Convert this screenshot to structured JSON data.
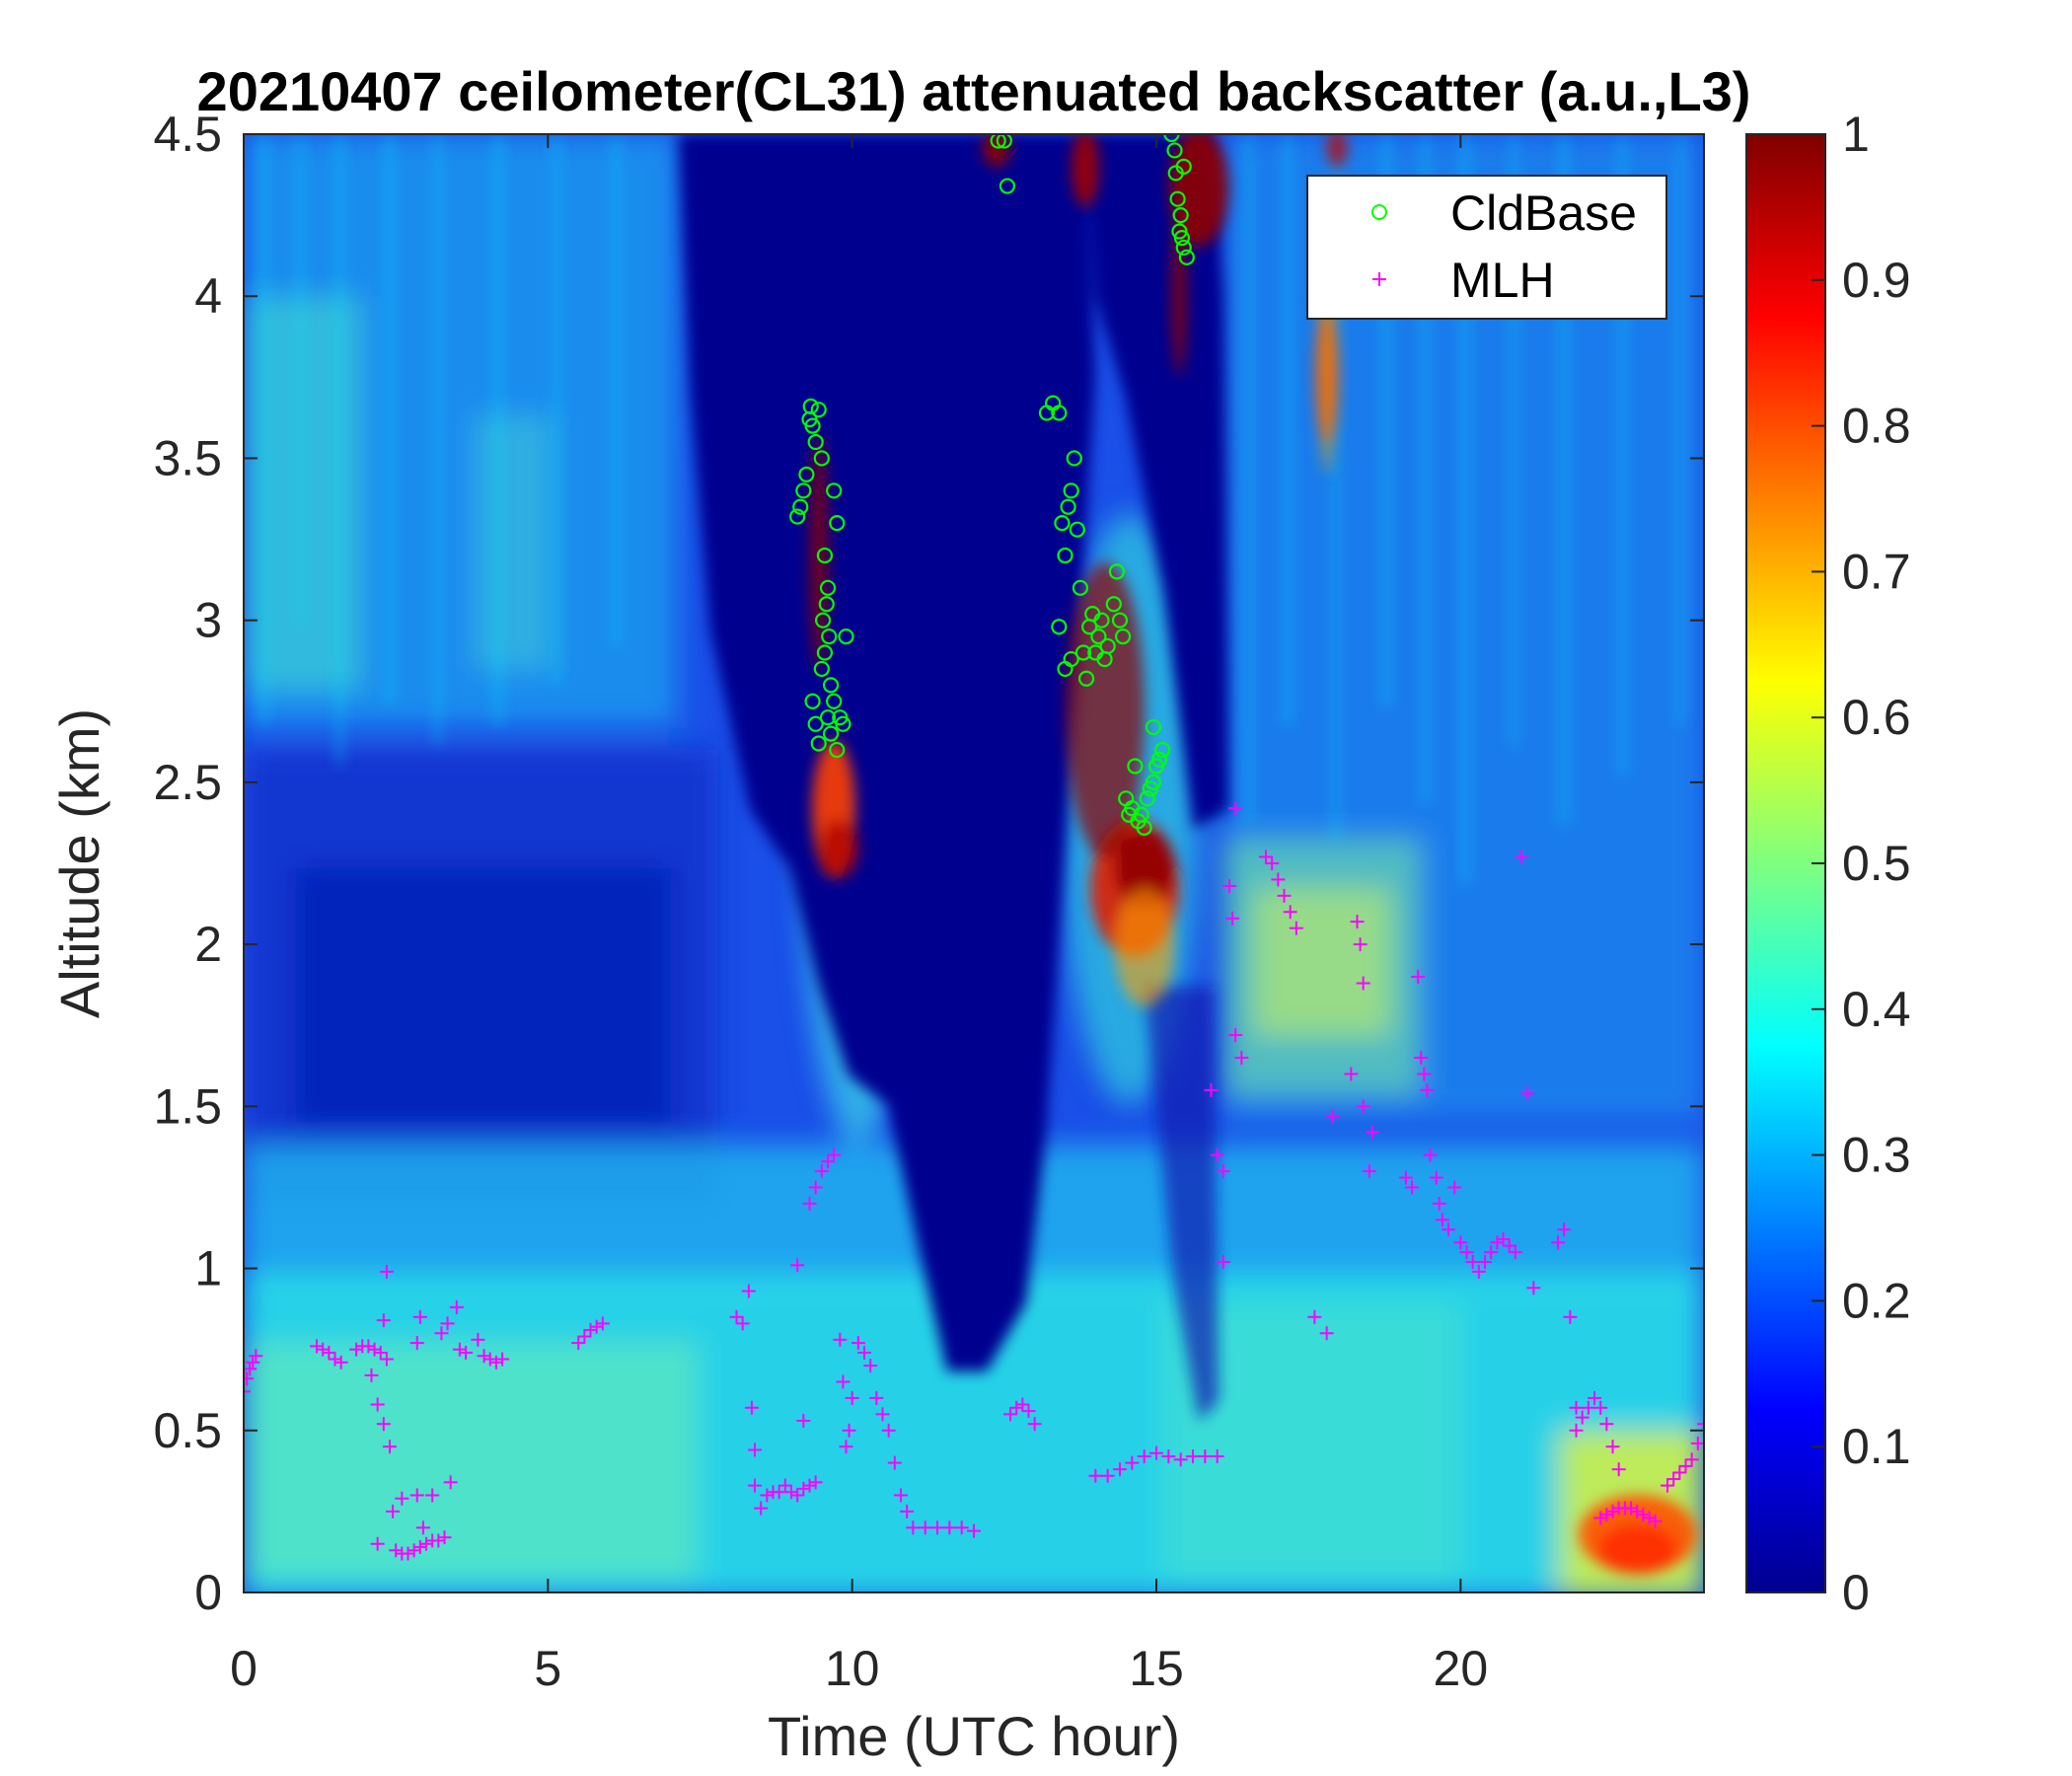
{
  "chart_data": {
    "type": "heatmap",
    "title": "20210407 ceilometer(CL31) attenuated backscatter (a.u.,L3)",
    "xlabel": "Time (UTC hour)",
    "ylabel": "Altitude (km)",
    "xlim": [
      0,
      24
    ],
    "ylim": [
      0,
      4.5
    ],
    "x_ticks": [
      0,
      5,
      10,
      15,
      20
    ],
    "x_tick_labels": [
      "0",
      "5",
      "10",
      "15",
      "20"
    ],
    "y_ticks": [
      0,
      0.5,
      1,
      1.5,
      2,
      2.5,
      3,
      3.5,
      4,
      4.5
    ],
    "y_tick_labels": [
      "0",
      "0.5",
      "1",
      "1.5",
      "2",
      "2.5",
      "3",
      "3.5",
      "4",
      "4.5"
    ],
    "colorbar": {
      "colormap": "jet",
      "range": [
        0,
        1
      ],
      "ticks": [
        0,
        0.1,
        0.2,
        0.3,
        0.4,
        0.5,
        0.6,
        0.7,
        0.8,
        0.9,
        1
      ],
      "tick_labels": [
        "0",
        "0.1",
        "0.2",
        "0.3",
        "0.4",
        "0.5",
        "0.6",
        "0.7",
        "0.8",
        "0.9",
        "1"
      ]
    },
    "legend": {
      "placement": "top-right",
      "entries": [
        {
          "label": "CldBase",
          "marker": "circle",
          "color": "#00ff00"
        },
        {
          "label": "MLH",
          "marker": "plus",
          "color": "#ff00ff"
        }
      ]
    },
    "series": [
      {
        "name": "CldBase",
        "marker": "circle",
        "color": "#00ff00",
        "points": [
          [
            9.1,
            3.32
          ],
          [
            9.15,
            3.35
          ],
          [
            9.2,
            3.4
          ],
          [
            9.25,
            3.45
          ],
          [
            9.3,
            3.62
          ],
          [
            9.32,
            3.66
          ],
          [
            9.35,
            3.6
          ],
          [
            9.4,
            3.55
          ],
          [
            9.45,
            3.65
          ],
          [
            9.5,
            3.5
          ],
          [
            9.55,
            3.2
          ],
          [
            9.6,
            3.1
          ],
          [
            9.62,
            2.95
          ],
          [
            9.65,
            2.8
          ],
          [
            9.7,
            3.4
          ],
          [
            9.75,
            3.3
          ],
          [
            9.8,
            2.7
          ],
          [
            9.35,
            2.75
          ],
          [
            9.4,
            2.68
          ],
          [
            9.45,
            2.62
          ],
          [
            9.5,
            2.85
          ],
          [
            9.55,
            2.9
          ],
          [
            9.6,
            2.7
          ],
          [
            9.65,
            2.65
          ],
          [
            9.7,
            2.75
          ],
          [
            9.75,
            2.6
          ],
          [
            9.85,
            2.68
          ],
          [
            9.9,
            2.95
          ],
          [
            9.52,
            3.0
          ],
          [
            9.58,
            3.05
          ],
          [
            12.4,
            4.48
          ],
          [
            12.5,
            4.48
          ],
          [
            12.55,
            4.34
          ],
          [
            13.2,
            3.64
          ],
          [
            13.3,
            3.67
          ],
          [
            13.4,
            3.64
          ],
          [
            13.45,
            3.3
          ],
          [
            13.5,
            3.2
          ],
          [
            13.55,
            3.35
          ],
          [
            13.6,
            3.4
          ],
          [
            13.65,
            3.5
          ],
          [
            13.7,
            3.28
          ],
          [
            13.75,
            3.1
          ],
          [
            13.8,
            2.9
          ],
          [
            13.85,
            2.82
          ],
          [
            13.9,
            2.98
          ],
          [
            13.95,
            3.02
          ],
          [
            14.0,
            2.9
          ],
          [
            14.05,
            2.95
          ],
          [
            14.1,
            3.0
          ],
          [
            14.2,
            2.92
          ],
          [
            14.3,
            3.05
          ],
          [
            14.35,
            3.15
          ],
          [
            14.4,
            3.0
          ],
          [
            14.45,
            2.95
          ],
          [
            13.4,
            2.98
          ],
          [
            13.5,
            2.85
          ],
          [
            13.6,
            2.88
          ],
          [
            14.15,
            2.88
          ],
          [
            14.5,
            2.45
          ],
          [
            14.55,
            2.4
          ],
          [
            14.6,
            2.42
          ],
          [
            14.65,
            2.55
          ],
          [
            14.7,
            2.38
          ],
          [
            14.75,
            2.4
          ],
          [
            14.8,
            2.36
          ],
          [
            14.85,
            2.45
          ],
          [
            14.9,
            2.48
          ],
          [
            14.95,
            2.5
          ],
          [
            15.0,
            2.55
          ],
          [
            15.05,
            2.57
          ],
          [
            15.1,
            2.6
          ],
          [
            14.95,
            2.67
          ],
          [
            15.25,
            4.5
          ],
          [
            15.3,
            4.45
          ],
          [
            15.32,
            4.38
          ],
          [
            15.35,
            4.3
          ],
          [
            15.4,
            4.25
          ],
          [
            15.42,
            4.18
          ],
          [
            15.45,
            4.15
          ],
          [
            15.5,
            4.12
          ],
          [
            15.38,
            4.2
          ],
          [
            15.45,
            4.4
          ]
        ]
      },
      {
        "name": "MLH",
        "marker": "plus",
        "color": "#ff00ff",
        "points": [
          [
            0.0,
            0.62
          ],
          [
            0.05,
            0.66
          ],
          [
            0.1,
            0.69
          ],
          [
            0.15,
            0.71
          ],
          [
            0.2,
            0.73
          ],
          [
            1.2,
            0.76
          ],
          [
            1.3,
            0.75
          ],
          [
            1.4,
            0.74
          ],
          [
            1.5,
            0.72
          ],
          [
            1.6,
            0.71
          ],
          [
            1.85,
            0.75
          ],
          [
            1.95,
            0.76
          ],
          [
            2.05,
            0.76
          ],
          [
            2.15,
            0.75
          ],
          [
            2.25,
            0.74
          ],
          [
            2.35,
            0.72
          ],
          [
            2.1,
            0.67
          ],
          [
            2.2,
            0.58
          ],
          [
            2.3,
            0.52
          ],
          [
            2.4,
            0.45
          ],
          [
            2.3,
            0.84
          ],
          [
            2.35,
            0.99
          ],
          [
            2.45,
            0.25
          ],
          [
            2.6,
            0.29
          ],
          [
            2.85,
            0.3
          ],
          [
            2.95,
            0.2
          ],
          [
            3.1,
            0.3
          ],
          [
            3.4,
            0.34
          ],
          [
            2.5,
            0.13
          ],
          [
            2.6,
            0.12
          ],
          [
            2.7,
            0.12
          ],
          [
            2.8,
            0.13
          ],
          [
            2.9,
            0.14
          ],
          [
            3.0,
            0.15
          ],
          [
            3.1,
            0.16
          ],
          [
            3.2,
            0.16
          ],
          [
            3.3,
            0.17
          ],
          [
            2.2,
            0.15
          ],
          [
            2.85,
            0.77
          ],
          [
            2.9,
            0.85
          ],
          [
            3.25,
            0.8
          ],
          [
            3.35,
            0.83
          ],
          [
            3.5,
            0.88
          ],
          [
            3.55,
            0.75
          ],
          [
            3.65,
            0.74
          ],
          [
            3.85,
            0.78
          ],
          [
            3.95,
            0.73
          ],
          [
            4.05,
            0.72
          ],
          [
            4.15,
            0.71
          ],
          [
            4.25,
            0.72
          ],
          [
            5.5,
            0.77
          ],
          [
            5.6,
            0.79
          ],
          [
            5.7,
            0.81
          ],
          [
            5.8,
            0.82
          ],
          [
            5.9,
            0.83
          ],
          [
            8.1,
            0.85
          ],
          [
            8.2,
            0.83
          ],
          [
            8.3,
            0.93
          ],
          [
            8.35,
            0.57
          ],
          [
            8.4,
            0.44
          ],
          [
            8.4,
            0.33
          ],
          [
            8.5,
            0.26
          ],
          [
            8.6,
            0.3
          ],
          [
            8.7,
            0.31
          ],
          [
            8.8,
            0.31
          ],
          [
            8.9,
            0.33
          ],
          [
            9.0,
            0.31
          ],
          [
            9.1,
            0.3
          ],
          [
            9.2,
            0.32
          ],
          [
            9.3,
            0.33
          ],
          [
            9.4,
            0.34
          ],
          [
            9.2,
            0.53
          ],
          [
            9.1,
            1.01
          ],
          [
            9.3,
            1.2
          ],
          [
            9.4,
            1.25
          ],
          [
            9.5,
            1.3
          ],
          [
            9.6,
            1.33
          ],
          [
            9.7,
            1.35
          ],
          [
            9.8,
            0.78
          ],
          [
            9.85,
            0.65
          ],
          [
            9.9,
            0.45
          ],
          [
            9.95,
            0.5
          ],
          [
            10.0,
            0.6
          ],
          [
            10.1,
            0.77
          ],
          [
            10.2,
            0.74
          ],
          [
            10.3,
            0.7
          ],
          [
            10.4,
            0.6
          ],
          [
            10.5,
            0.55
          ],
          [
            10.6,
            0.5
          ],
          [
            10.7,
            0.4
          ],
          [
            10.8,
            0.3
          ],
          [
            10.9,
            0.25
          ],
          [
            11.0,
            0.2
          ],
          [
            11.2,
            0.2
          ],
          [
            11.4,
            0.2
          ],
          [
            11.6,
            0.2
          ],
          [
            11.8,
            0.2
          ],
          [
            12.0,
            0.19
          ],
          [
            12.6,
            0.55
          ],
          [
            12.7,
            0.57
          ],
          [
            12.8,
            0.58
          ],
          [
            12.9,
            0.56
          ],
          [
            13.0,
            0.52
          ],
          [
            14.0,
            0.36
          ],
          [
            14.2,
            0.36
          ],
          [
            14.4,
            0.38
          ],
          [
            14.6,
            0.4
          ],
          [
            14.8,
            0.42
          ],
          [
            15.0,
            0.43
          ],
          [
            15.2,
            0.42
          ],
          [
            15.4,
            0.41
          ],
          [
            15.6,
            0.42
          ],
          [
            15.8,
            0.42
          ],
          [
            16.0,
            0.42
          ],
          [
            15.9,
            1.55
          ],
          [
            16.0,
            1.35
          ],
          [
            16.1,
            1.3
          ],
          [
            16.1,
            1.02
          ],
          [
            16.2,
            2.18
          ],
          [
            16.25,
            2.08
          ],
          [
            16.3,
            1.72
          ],
          [
            16.4,
            1.65
          ],
          [
            16.3,
            2.42
          ],
          [
            16.8,
            2.27
          ],
          [
            16.9,
            2.25
          ],
          [
            17.0,
            2.2
          ],
          [
            17.1,
            2.15
          ],
          [
            17.2,
            2.1
          ],
          [
            17.3,
            2.05
          ],
          [
            17.6,
            0.85
          ],
          [
            17.8,
            0.8
          ],
          [
            17.9,
            1.47
          ],
          [
            18.2,
            1.6
          ],
          [
            18.3,
            2.07
          ],
          [
            18.35,
            2.0
          ],
          [
            18.4,
            1.88
          ],
          [
            18.4,
            1.5
          ],
          [
            18.5,
            1.3
          ],
          [
            18.55,
            1.42
          ],
          [
            19.1,
            1.28
          ],
          [
            19.2,
            1.25
          ],
          [
            19.3,
            1.9
          ],
          [
            19.35,
            1.65
          ],
          [
            19.4,
            1.6
          ],
          [
            19.45,
            1.55
          ],
          [
            19.5,
            1.35
          ],
          [
            19.6,
            1.28
          ],
          [
            19.65,
            1.2
          ],
          [
            19.7,
            1.15
          ],
          [
            19.8,
            1.12
          ],
          [
            19.9,
            1.25
          ],
          [
            20.0,
            1.08
          ],
          [
            20.1,
            1.05
          ],
          [
            20.2,
            1.02
          ],
          [
            20.3,
            0.99
          ],
          [
            20.4,
            1.02
          ],
          [
            20.5,
            1.05
          ],
          [
            20.6,
            1.08
          ],
          [
            20.7,
            1.09
          ],
          [
            20.8,
            1.07
          ],
          [
            20.9,
            1.05
          ],
          [
            21.0,
            2.27
          ],
          [
            21.1,
            1.54
          ],
          [
            21.2,
            0.94
          ],
          [
            21.6,
            1.08
          ],
          [
            21.7,
            1.12
          ],
          [
            21.8,
            0.85
          ],
          [
            21.9,
            0.57
          ],
          [
            21.9,
            0.5
          ],
          [
            22.0,
            0.54
          ],
          [
            22.1,
            0.57
          ],
          [
            22.2,
            0.6
          ],
          [
            22.3,
            0.57
          ],
          [
            22.4,
            0.52
          ],
          [
            22.5,
            0.45
          ],
          [
            22.6,
            0.38
          ],
          [
            22.3,
            0.23
          ],
          [
            22.4,
            0.24
          ],
          [
            22.5,
            0.25
          ],
          [
            22.6,
            0.26
          ],
          [
            22.7,
            0.26
          ],
          [
            22.8,
            0.26
          ],
          [
            22.9,
            0.25
          ],
          [
            23.0,
            0.24
          ],
          [
            23.1,
            0.23
          ],
          [
            23.2,
            0.22
          ],
          [
            23.4,
            0.33
          ],
          [
            23.5,
            0.35
          ],
          [
            23.6,
            0.37
          ],
          [
            23.7,
            0.39
          ],
          [
            23.8,
            0.41
          ],
          [
            23.9,
            0.46
          ],
          [
            24.0,
            0.52
          ]
        ]
      }
    ]
  }
}
